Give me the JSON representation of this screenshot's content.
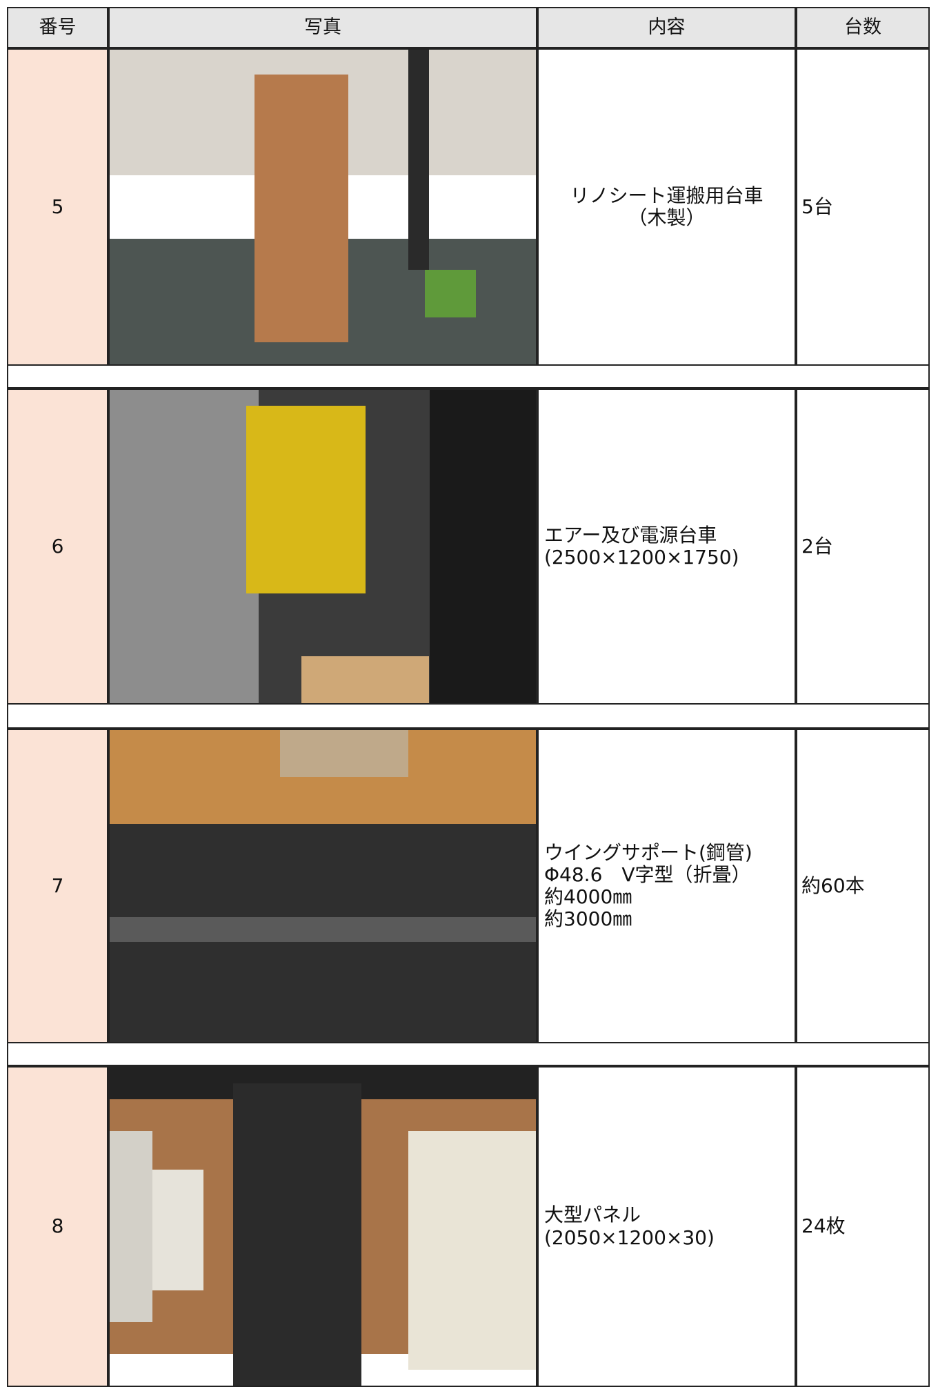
{
  "table": {
    "header": [
      "番号",
      "写真",
      "内容",
      "台数"
    ],
    "rows": [
      {
        "number": "5",
        "content": [
          "リノシート運搬用台車",
          "（木製）"
        ],
        "count": "5台"
      },
      {
        "number": "6",
        "content": [
          "エアー及び電源台車",
          "(2500×1200×1750)"
        ],
        "count": "2台"
      },
      {
        "number": "7",
        "content": [
          "ウイングサポート(鋼管)",
          "Φ48.6　V字型（折畳）",
          "約4000㎜",
          "約3000㎜"
        ],
        "count": "約60本"
      },
      {
        "number": "8",
        "content": [
          "大型パネル",
          "(2050×1200×30)"
        ],
        "count": "24枚"
      }
    ]
  }
}
